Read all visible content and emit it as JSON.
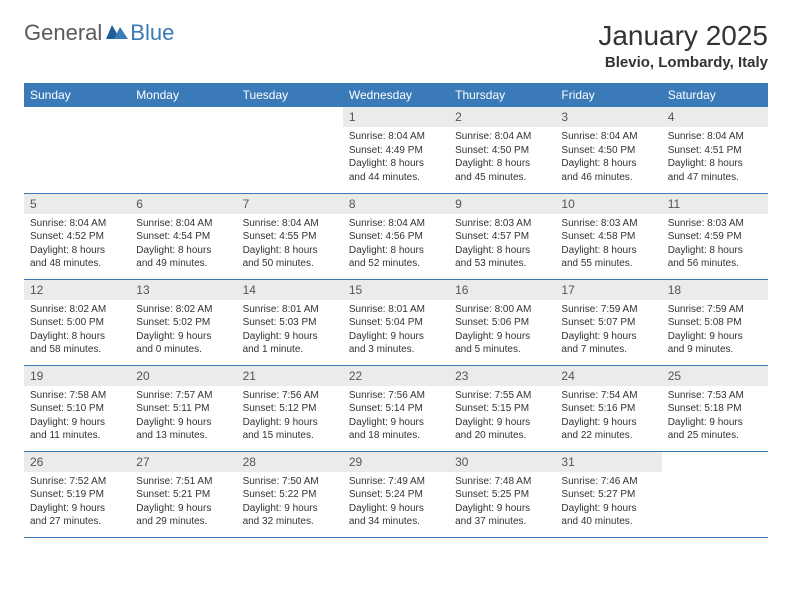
{
  "logo": {
    "general": "General",
    "blue": "Blue"
  },
  "title": "January 2025",
  "location": "Blevio, Lombardy, Italy",
  "colors": {
    "header_bg": "#3a7ab8",
    "header_text": "#ffffff",
    "daynum_bg": "#ebebeb",
    "border": "#3a7ab8",
    "text": "#333333"
  },
  "weekdays": [
    "Sunday",
    "Monday",
    "Tuesday",
    "Wednesday",
    "Thursday",
    "Friday",
    "Saturday"
  ],
  "weeks": [
    [
      null,
      null,
      null,
      {
        "d": "1",
        "sr": "8:04 AM",
        "ss": "4:49 PM",
        "dl": "8 hours and 44 minutes."
      },
      {
        "d": "2",
        "sr": "8:04 AM",
        "ss": "4:50 PM",
        "dl": "8 hours and 45 minutes."
      },
      {
        "d": "3",
        "sr": "8:04 AM",
        "ss": "4:50 PM",
        "dl": "8 hours and 46 minutes."
      },
      {
        "d": "4",
        "sr": "8:04 AM",
        "ss": "4:51 PM",
        "dl": "8 hours and 47 minutes."
      }
    ],
    [
      {
        "d": "5",
        "sr": "8:04 AM",
        "ss": "4:52 PM",
        "dl": "8 hours and 48 minutes."
      },
      {
        "d": "6",
        "sr": "8:04 AM",
        "ss": "4:54 PM",
        "dl": "8 hours and 49 minutes."
      },
      {
        "d": "7",
        "sr": "8:04 AM",
        "ss": "4:55 PM",
        "dl": "8 hours and 50 minutes."
      },
      {
        "d": "8",
        "sr": "8:04 AM",
        "ss": "4:56 PM",
        "dl": "8 hours and 52 minutes."
      },
      {
        "d": "9",
        "sr": "8:03 AM",
        "ss": "4:57 PM",
        "dl": "8 hours and 53 minutes."
      },
      {
        "d": "10",
        "sr": "8:03 AM",
        "ss": "4:58 PM",
        "dl": "8 hours and 55 minutes."
      },
      {
        "d": "11",
        "sr": "8:03 AM",
        "ss": "4:59 PM",
        "dl": "8 hours and 56 minutes."
      }
    ],
    [
      {
        "d": "12",
        "sr": "8:02 AM",
        "ss": "5:00 PM",
        "dl": "8 hours and 58 minutes."
      },
      {
        "d": "13",
        "sr": "8:02 AM",
        "ss": "5:02 PM",
        "dl": "9 hours and 0 minutes."
      },
      {
        "d": "14",
        "sr": "8:01 AM",
        "ss": "5:03 PM",
        "dl": "9 hours and 1 minute."
      },
      {
        "d": "15",
        "sr": "8:01 AM",
        "ss": "5:04 PM",
        "dl": "9 hours and 3 minutes."
      },
      {
        "d": "16",
        "sr": "8:00 AM",
        "ss": "5:06 PM",
        "dl": "9 hours and 5 minutes."
      },
      {
        "d": "17",
        "sr": "7:59 AM",
        "ss": "5:07 PM",
        "dl": "9 hours and 7 minutes."
      },
      {
        "d": "18",
        "sr": "7:59 AM",
        "ss": "5:08 PM",
        "dl": "9 hours and 9 minutes."
      }
    ],
    [
      {
        "d": "19",
        "sr": "7:58 AM",
        "ss": "5:10 PM",
        "dl": "9 hours and 11 minutes."
      },
      {
        "d": "20",
        "sr": "7:57 AM",
        "ss": "5:11 PM",
        "dl": "9 hours and 13 minutes."
      },
      {
        "d": "21",
        "sr": "7:56 AM",
        "ss": "5:12 PM",
        "dl": "9 hours and 15 minutes."
      },
      {
        "d": "22",
        "sr": "7:56 AM",
        "ss": "5:14 PM",
        "dl": "9 hours and 18 minutes."
      },
      {
        "d": "23",
        "sr": "7:55 AM",
        "ss": "5:15 PM",
        "dl": "9 hours and 20 minutes."
      },
      {
        "d": "24",
        "sr": "7:54 AM",
        "ss": "5:16 PM",
        "dl": "9 hours and 22 minutes."
      },
      {
        "d": "25",
        "sr": "7:53 AM",
        "ss": "5:18 PM",
        "dl": "9 hours and 25 minutes."
      }
    ],
    [
      {
        "d": "26",
        "sr": "7:52 AM",
        "ss": "5:19 PM",
        "dl": "9 hours and 27 minutes."
      },
      {
        "d": "27",
        "sr": "7:51 AM",
        "ss": "5:21 PM",
        "dl": "9 hours and 29 minutes."
      },
      {
        "d": "28",
        "sr": "7:50 AM",
        "ss": "5:22 PM",
        "dl": "9 hours and 32 minutes."
      },
      {
        "d": "29",
        "sr": "7:49 AM",
        "ss": "5:24 PM",
        "dl": "9 hours and 34 minutes."
      },
      {
        "d": "30",
        "sr": "7:48 AM",
        "ss": "5:25 PM",
        "dl": "9 hours and 37 minutes."
      },
      {
        "d": "31",
        "sr": "7:46 AM",
        "ss": "5:27 PM",
        "dl": "9 hours and 40 minutes."
      },
      null
    ]
  ]
}
